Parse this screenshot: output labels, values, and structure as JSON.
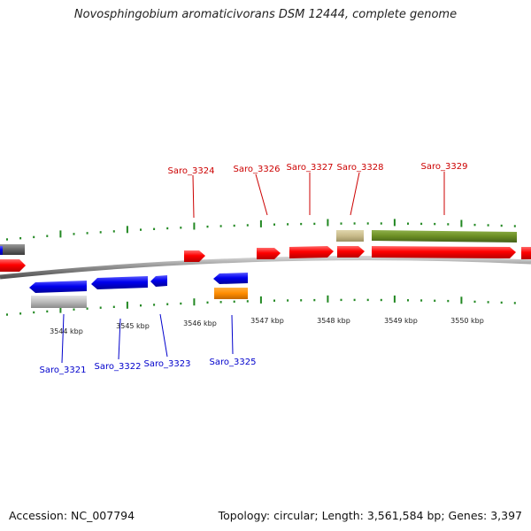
{
  "header": {
    "title": "Novosphingobium aromaticivorans DSM 12444, complete genome"
  },
  "footer": {
    "accession": "Accession: NC_007794",
    "summary": "Topology: circular; Length: 3,561,584 bp; Genes: 3,397"
  },
  "scale": {
    "unit": "kbp",
    "ticks": [
      "3544 kbp",
      "3545 kbp",
      "3546 kbp",
      "3547 kbp",
      "3548 kbp",
      "3549 kbp",
      "3550 kbp"
    ]
  },
  "genes": {
    "forward": [
      "Saro_3324",
      "Saro_3326",
      "Saro_3327",
      "Saro_3328",
      "Saro_3329"
    ],
    "reverse": [
      "Saro_3321",
      "Saro_3322",
      "Saro_3323",
      "Saro_3325"
    ]
  },
  "colors": {
    "forward_strand": "#ff0000",
    "reverse_strand": "#0000ee",
    "forward_label": "#cc0000",
    "reverse_label": "#0000cc",
    "tick": "#228822",
    "olive": "#6b8e23",
    "khaki": "#c8bb8a",
    "orange": "#ff8c00",
    "gray": "#bbbbbb",
    "dark_gray": "#666666"
  }
}
